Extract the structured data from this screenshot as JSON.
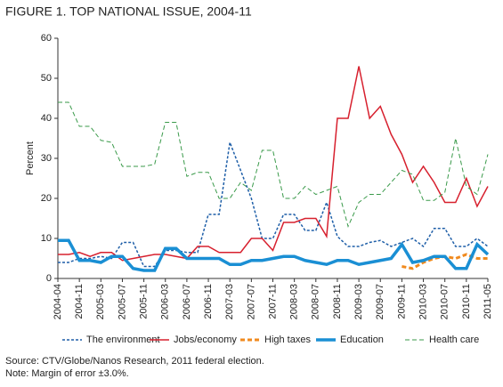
{
  "chart_data": {
    "type": "line",
    "title": "FIGURE 1. TOP NATIONAL ISSUE, 2004-11",
    "y_label": "Percent",
    "categories": [
      "2004-04",
      null,
      "2004-11",
      null,
      "2005-03",
      null,
      "2005-07",
      null,
      "2005-11",
      null,
      "2006-03",
      null,
      "2006-07",
      null,
      "2006-11",
      null,
      "2007-03",
      null,
      "2007-07",
      null,
      "2007-11",
      null,
      "2008-03",
      null,
      "2008-07",
      null,
      "2008-11",
      null,
      "2009-03",
      null,
      "2009-07",
      null,
      "2009-11",
      null,
      "2010-03",
      null,
      "2010-07",
      null,
      "2010-11",
      null,
      "2011-05"
    ],
    "series": [
      {
        "name": "The environment",
        "color": "#1f5fa8",
        "dash": "dotted",
        "width": 1.5,
        "values": [
          4,
          4,
          5,
          5,
          5.5,
          5,
          9,
          9,
          3,
          3,
          7,
          7,
          6.5,
          6.5,
          16,
          16,
          34,
          27,
          20,
          10,
          10,
          16,
          16,
          12,
          12,
          19,
          10.5,
          8,
          8,
          9,
          9.5,
          8,
          9,
          10,
          8,
          12.5,
          12.5,
          8,
          8,
          10,
          8
        ]
      },
      {
        "name": "Jobs/economy",
        "color": "#d7202e",
        "dash": "solid",
        "width": 1.5,
        "values": [
          6,
          6,
          6.5,
          5.5,
          6.5,
          6.5,
          4.5,
          5,
          5.5,
          6,
          6,
          5.5,
          5,
          8,
          8,
          6.5,
          6.5,
          6.5,
          10,
          10,
          7,
          14,
          14,
          15,
          15,
          10.5,
          40,
          40,
          53,
          40,
          43,
          36,
          31,
          24,
          28,
          24,
          19,
          19,
          25,
          18,
          23
        ]
      },
      {
        "name": "High taxes",
        "color": "#f08a1e",
        "dash": "dashed",
        "width": 3,
        "values": [
          null,
          null,
          null,
          null,
          null,
          null,
          null,
          null,
          null,
          null,
          null,
          null,
          null,
          null,
          null,
          null,
          null,
          null,
          null,
          null,
          null,
          null,
          null,
          null,
          null,
          null,
          null,
          null,
          null,
          null,
          null,
          null,
          3,
          2.5,
          4,
          5,
          5.5,
          5,
          6,
          5,
          5
        ]
      },
      {
        "name": "Education",
        "color": "#1a8fd4",
        "dash": "solid",
        "width": 3.5,
        "values": [
          9.5,
          9.5,
          4.5,
          4.5,
          4,
          5.5,
          5.5,
          2.5,
          2,
          2,
          7.5,
          7.5,
          5,
          5,
          5,
          5,
          3.5,
          3.5,
          4.5,
          4.5,
          5,
          5.5,
          5.5,
          4.5,
          4,
          3.5,
          4.5,
          4.5,
          3.5,
          4,
          4.5,
          5,
          8.5,
          4,
          4.5,
          5.5,
          5.5,
          2.5,
          2.5,
          8.5,
          6
        ]
      },
      {
        "name": "Health care",
        "color": "#3a9a4a",
        "dash": "dashed",
        "width": 1,
        "values": [
          44,
          44,
          38,
          38,
          34.5,
          34,
          28,
          28,
          28,
          28.5,
          39,
          39,
          25.5,
          26.5,
          26.5,
          20,
          20,
          24,
          22,
          32,
          32,
          20,
          20,
          23,
          21,
          22,
          23,
          13,
          19,
          21,
          21,
          24,
          27,
          26,
          19.5,
          19.5,
          21.5,
          35,
          23,
          21,
          31
        ]
      }
    ],
    "ylim": [
      0,
      60
    ],
    "yticks": [
      0,
      10,
      20,
      30,
      40,
      50,
      60
    ],
    "source": "Source: CTV/Globe/Nanos Research, 2011 federal election.",
    "note": "Note: Margin of error ±3.0%."
  }
}
